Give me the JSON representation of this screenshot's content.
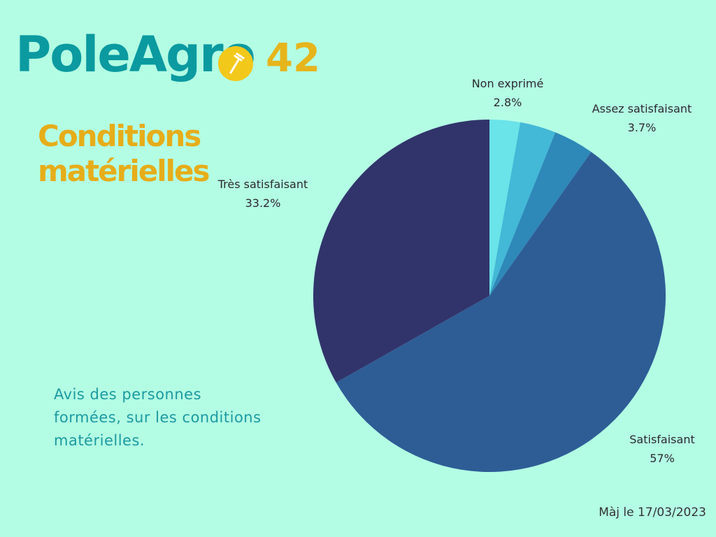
{
  "logo": {
    "name": "PoleAgro",
    "number": "42",
    "badge_icon": "fork-icon"
  },
  "title": {
    "line1": "Conditions",
    "line2": "matérielles"
  },
  "caption": "Avis des personnes formées, sur les conditions matérielles.",
  "date": "Màj le 17/03/2023",
  "colors": {
    "background": "#b3fde4",
    "title": "#e6ad19",
    "logo": "#0a9aa0",
    "caption": "#1b9ba0"
  },
  "chart_data": {
    "type": "pie",
    "title": "",
    "start": "top",
    "direction": "clockwise",
    "slices": [
      {
        "label": "Non exprimé",
        "value": 2.8,
        "display": "2.8%",
        "color": "#6ae3e9"
      },
      {
        "label": "",
        "value": 3.3,
        "display": "",
        "color": "#43b8d7"
      },
      {
        "label": "Assez satisfaisant",
        "value": 3.7,
        "display": "3.7%",
        "color": "#2e88b8"
      },
      {
        "label": "Satisfaisant",
        "value": 57,
        "display": "57%",
        "color": "#2e5d96"
      },
      {
        "label": "Très satisfaisant",
        "value": 33.2,
        "display": "33.2%",
        "color": "#31346b"
      }
    ]
  }
}
